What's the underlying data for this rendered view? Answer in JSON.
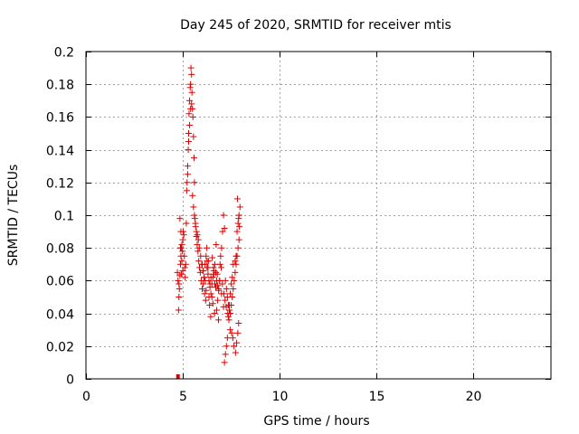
{
  "chart_data": {
    "type": "scatter",
    "title": "Day 245 of 2020, SRMTID for receiver mtis",
    "xlabel": "GPS time / hours",
    "ylabel": "SRMTID / TECUs",
    "xlim": [
      0,
      24
    ],
    "ylim": [
      0,
      0.2
    ],
    "xticks": [
      0,
      5,
      10,
      15,
      20
    ],
    "xtick_labels": [
      "0",
      "5",
      "10",
      "15",
      "20"
    ],
    "yticks": [
      0,
      0.02,
      0.04,
      0.06,
      0.08,
      0.1,
      0.12,
      0.14,
      0.16,
      0.18,
      0.2
    ],
    "ytick_labels": [
      "0",
      "0.02",
      "0.04",
      "0.06",
      "0.08",
      "0.1",
      "0.12",
      "0.14",
      "0.16",
      "0.18",
      "0.2"
    ],
    "grid": true,
    "marker": "plus",
    "color": "#dd0000",
    "series": [
      {
        "x": [
          4.72,
          4.75,
          4.78,
          4.8,
          4.82,
          4.85,
          4.88,
          4.9,
          4.92,
          4.95,
          4.98,
          5.0,
          5.02,
          5.05,
          5.08,
          5.1,
          5.12,
          5.15,
          4.85,
          4.9,
          4.95,
          5.0,
          4.8,
          4.88,
          4.93,
          5.18,
          5.2,
          5.22,
          5.25,
          5.28,
          5.3,
          5.32,
          5.35,
          5.38,
          5.4,
          5.42,
          5.45,
          5.47,
          5.5,
          5.52,
          5.55,
          5.58,
          5.6,
          5.25,
          5.3,
          5.35,
          5.4,
          5.45,
          5.5,
          5.55,
          5.6,
          5.65,
          5.7,
          5.75,
          5.8,
          5.85,
          5.62,
          5.66,
          5.7,
          5.74,
          5.78,
          5.82,
          5.86,
          5.9,
          5.95,
          6.0,
          6.05,
          6.1,
          6.15,
          6.2,
          6.25,
          6.3,
          6.35,
          6.4,
          6.45,
          6.5,
          6.55,
          6.6,
          6.65,
          6.7,
          6.75,
          6.8,
          6.85,
          6.9,
          5.92,
          5.98,
          6.04,
          6.12,
          6.18,
          6.24,
          6.32,
          6.38,
          6.44,
          6.52,
          6.58,
          6.64,
          6.72,
          6.78,
          6.84,
          6.92,
          6.95,
          7.0,
          7.05,
          7.1,
          7.15,
          7.2,
          7.25,
          7.3,
          7.35,
          7.4,
          7.45,
          7.5,
          7.55,
          7.6,
          7.65,
          7.7,
          7.75,
          7.8,
          7.85,
          7.9,
          6.98,
          7.04,
          7.12,
          7.18,
          7.24,
          7.32,
          7.38,
          7.44,
          7.52,
          7.58,
          7.64,
          7.72,
          7.78,
          7.84,
          7.88,
          7.15,
          7.2,
          7.25,
          7.3,
          7.35,
          7.4,
          7.45,
          7.5,
          7.55,
          7.6,
          7.7,
          7.75,
          7.8,
          7.85,
          7.9,
          7.95,
          7.82,
          7.88,
          7.92,
          6.0,
          6.1,
          6.2,
          6.3,
          6.4,
          6.5,
          6.6,
          6.7,
          6.8,
          6.9,
          7.0,
          7.1,
          6.05,
          6.15,
          6.25,
          6.35,
          6.45,
          6.55,
          6.65,
          6.75,
          6.85
        ],
        "y": [
          0.065,
          0.06,
          0.042,
          0.05,
          0.055,
          0.063,
          0.07,
          0.075,
          0.08,
          0.082,
          0.078,
          0.085,
          0.09,
          0.088,
          0.075,
          0.068,
          0.062,
          0.07,
          0.098,
          0.09,
          0.072,
          0.066,
          0.058,
          0.08,
          0.064,
          0.095,
          0.115,
          0.12,
          0.125,
          0.14,
          0.15,
          0.162,
          0.17,
          0.178,
          0.18,
          0.19,
          0.186,
          0.175,
          0.165,
          0.16,
          0.148,
          0.135,
          0.12,
          0.13,
          0.145,
          0.155,
          0.165,
          0.168,
          0.112,
          0.105,
          0.1,
          0.095,
          0.09,
          0.088,
          0.085,
          0.08,
          0.098,
          0.093,
          0.087,
          0.082,
          0.078,
          0.072,
          0.068,
          0.065,
          0.06,
          0.055,
          0.058,
          0.062,
          0.07,
          0.075,
          0.068,
          0.064,
          0.06,
          0.056,
          0.052,
          0.058,
          0.062,
          0.066,
          0.07,
          0.065,
          0.06,
          0.057,
          0.055,
          0.06,
          0.075,
          0.07,
          0.066,
          0.052,
          0.048,
          0.08,
          0.072,
          0.045,
          0.038,
          0.074,
          0.068,
          0.04,
          0.082,
          0.064,
          0.036,
          0.07,
          0.075,
          0.08,
          0.09,
          0.1,
          0.092,
          0.06,
          0.055,
          0.05,
          0.045,
          0.042,
          0.04,
          0.045,
          0.05,
          0.055,
          0.06,
          0.065,
          0.07,
          0.075,
          0.08,
          0.085,
          0.068,
          0.058,
          0.052,
          0.048,
          0.044,
          0.04,
          0.036,
          0.03,
          0.028,
          0.025,
          0.02,
          0.016,
          0.022,
          0.028,
          0.034,
          0.01,
          0.015,
          0.02,
          0.025,
          0.038,
          0.045,
          0.052,
          0.058,
          0.062,
          0.07,
          0.072,
          0.075,
          0.09,
          0.095,
          0.1,
          0.105,
          0.11,
          0.098,
          0.093,
          0.07,
          0.062,
          0.054,
          0.068,
          0.058,
          0.05,
          0.064,
          0.056,
          0.048,
          0.06,
          0.052,
          0.044,
          0.066,
          0.06,
          0.072,
          0.05,
          0.062,
          0.046,
          0.058,
          0.042,
          0.054
        ],
        "marker_sequence_note_removed": null
      }
    ],
    "zero_marker": {
      "x": 4.75,
      "y": 0
    }
  }
}
